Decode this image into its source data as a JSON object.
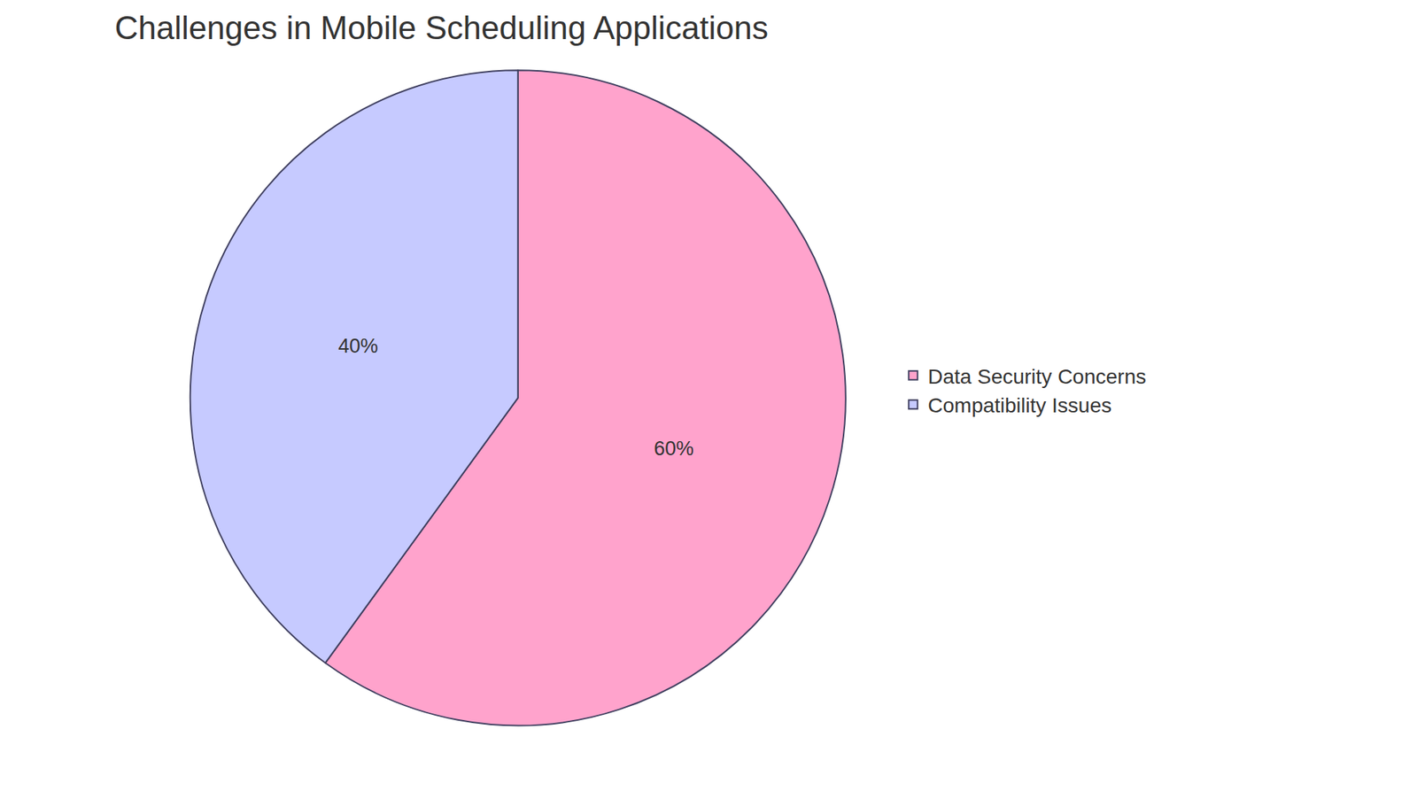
{
  "chart_data": {
    "type": "pie",
    "title": "Challenges in Mobile Scheduling Applications",
    "categories": [
      "Data Security Concerns",
      "Compatibility Issues"
    ],
    "values": [
      60,
      40
    ],
    "value_labels": [
      "60%",
      "40%"
    ],
    "colors": [
      "#ffa3cc",
      "#c6caff"
    ],
    "data_labels": true,
    "legend": "right"
  }
}
